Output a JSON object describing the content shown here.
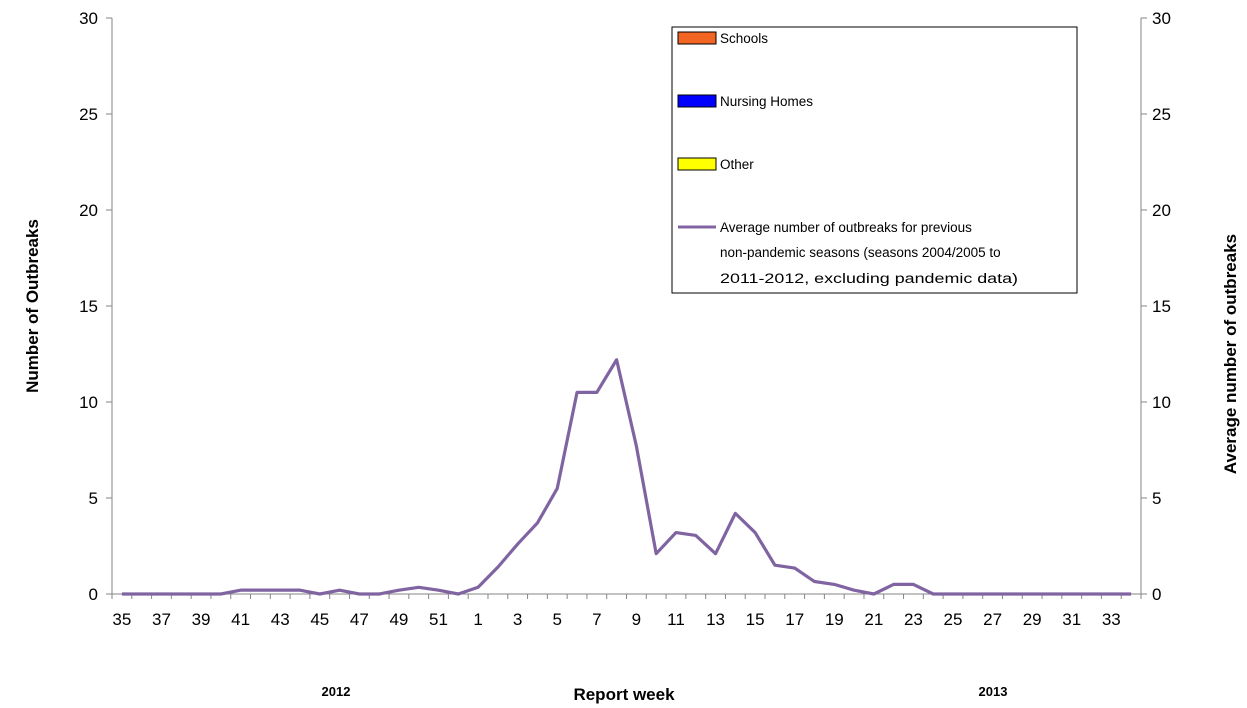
{
  "chart_data": {
    "type": "line",
    "y_left_label": "Number of Outbreaks",
    "y_right_label": "Average number of outbreaks",
    "xlabel": "Report week",
    "year_labels": [
      "2012",
      "2013"
    ],
    "ylim": [
      0,
      30
    ],
    "y_ticks": [
      0,
      5,
      10,
      15,
      20,
      25,
      30
    ],
    "x_tick_labels": [
      "35",
      "37",
      "39",
      "41",
      "43",
      "45",
      "47",
      "49",
      "51",
      "1",
      "3",
      "5",
      "7",
      "9",
      "11",
      "13",
      "15",
      "17",
      "19",
      "21",
      "23",
      "25",
      "27",
      "29",
      "31",
      "33"
    ],
    "weeks": [
      "35",
      "36",
      "37",
      "38",
      "39",
      "40",
      "41",
      "42",
      "43",
      "44",
      "45",
      "46",
      "47",
      "48",
      "49",
      "50",
      "51",
      "52",
      "1",
      "2",
      "3",
      "4",
      "5",
      "6",
      "7",
      "8",
      "9",
      "10",
      "11",
      "12",
      "13",
      "14",
      "15",
      "16",
      "17",
      "18",
      "19",
      "20",
      "21",
      "22",
      "23",
      "24",
      "25",
      "26",
      "27",
      "28",
      "29",
      "30",
      "31",
      "32",
      "33",
      "34"
    ],
    "legend": [
      {
        "label": "Schools",
        "kind": "bar",
        "color": "#f26522"
      },
      {
        "label": "Nursing Homes",
        "kind": "bar",
        "color": "#0000ff"
      },
      {
        "label": "Other",
        "kind": "bar",
        "color": "#ffff00"
      },
      {
        "label_lines": [
          "Average number of outbreaks for previous",
          "non-pandemic seasons  (seasons 2004/2005 to",
          "2011-2012, excluding pandemic data)"
        ],
        "kind": "line",
        "color": "#8064a2"
      }
    ],
    "series": [
      {
        "name": "Average number of outbreaks for previous non-pandemic seasons  (seasons 2004/2005 to 2011-2012, excluding pandemic data)",
        "color": "#8064a2",
        "values": [
          0,
          0,
          0,
          0,
          0,
          0,
          0.2,
          0.2,
          0.2,
          0.2,
          0,
          0.2,
          0,
          0,
          0.2,
          0.35,
          0.2,
          0,
          0.35,
          1.4,
          2.6,
          3.7,
          5.5,
          10.5,
          10.5,
          12.2,
          7.7,
          2.1,
          3.2,
          3.05,
          2.1,
          4.2,
          3.2,
          1.5,
          1.35,
          0.65,
          0.5,
          0.2,
          0,
          0.5,
          0.5,
          0,
          0,
          0,
          0,
          0,
          0,
          0,
          0,
          0,
          0,
          0
        ]
      }
    ],
    "grid": false,
    "legend_position": "top-right"
  }
}
